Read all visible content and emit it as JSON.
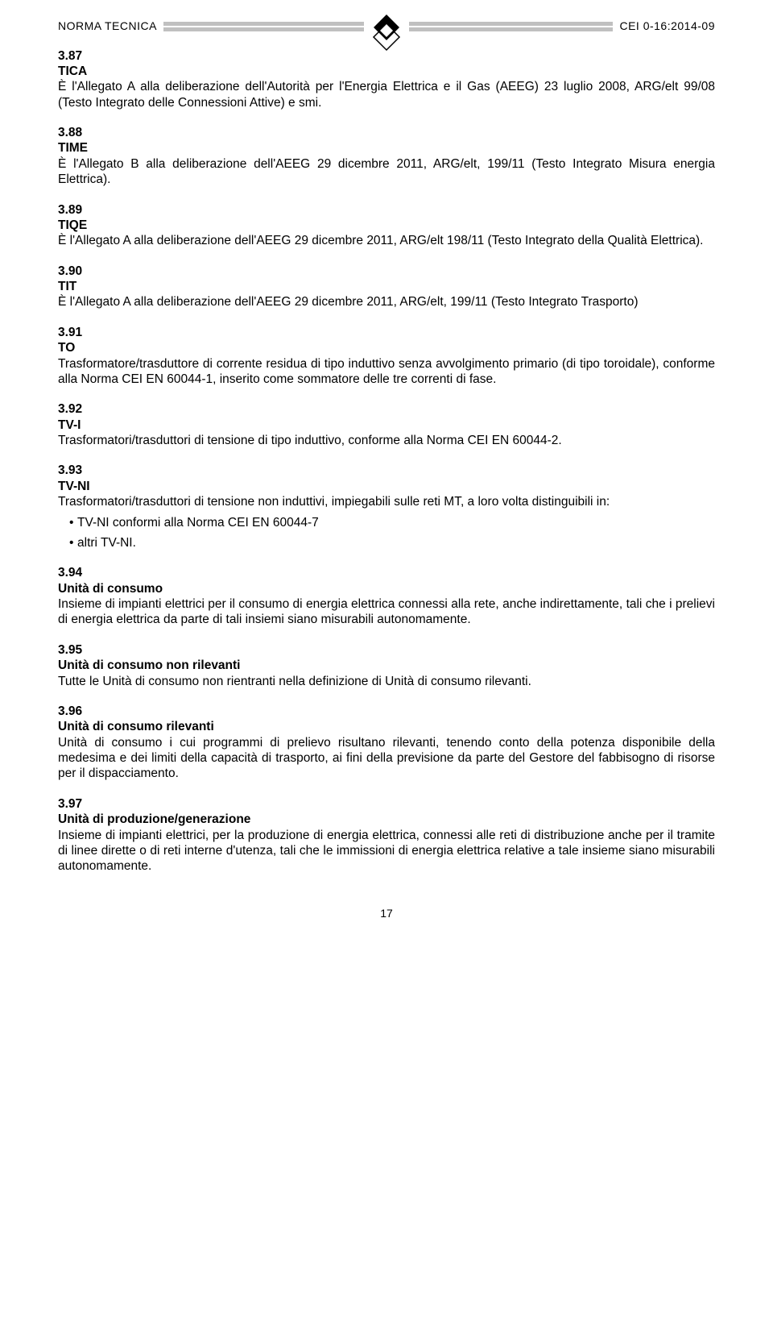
{
  "header": {
    "left": "NORMA TECNICA",
    "right": "CEI 0-16:2014-09"
  },
  "sections": [
    {
      "num": "3.87",
      "title": "TICA",
      "body": "È l'Allegato A alla deliberazione dell'Autorità per l'Energia Elettrica e il Gas (AEEG) 23 luglio 2008, ARG/elt 99/08 (Testo Integrato delle Connessioni Attive) e smi."
    },
    {
      "num": "3.88",
      "title": "TIME",
      "body": "È l'Allegato B alla deliberazione dell'AEEG 29 dicembre 2011, ARG/elt, 199/11 (Testo Integrato Misura energia Elettrica)."
    },
    {
      "num": "3.89",
      "title": "TIQE",
      "body": "È l'Allegato A alla deliberazione dell'AEEG 29 dicembre 2011, ARG/elt 198/11 (Testo Integrato della Qualità Elettrica)."
    },
    {
      "num": "3.90",
      "title": "TIT",
      "body": "È l'Allegato A alla deliberazione dell'AEEG 29 dicembre 2011, ARG/elt, 199/11 (Testo Integrato Trasporto)"
    },
    {
      "num": "3.91",
      "title": "TO",
      "body": "Trasformatore/trasduttore di corrente residua di tipo induttivo senza avvolgimento primario (di tipo toroidale), conforme alla Norma CEI EN 60044-1, inserito come sommatore delle tre correnti di fase."
    },
    {
      "num": "3.92",
      "title": "TV-I",
      "body": "Trasformatori/trasduttori di tensione di tipo induttivo, conforme alla Norma CEI EN 60044-2."
    },
    {
      "num": "3.93",
      "title": "TV-NI",
      "body": "Trasformatori/trasduttori di tensione non induttivi, impiegabili sulle reti MT, a loro volta distinguibili in:",
      "list": [
        "TV-NI conformi alla Norma CEI EN 60044-7",
        "altri TV-NI."
      ]
    },
    {
      "num": "3.94",
      "title": "Unità di consumo",
      "body": "Insieme di impianti elettrici per il consumo di energia elettrica connessi alla rete, anche indirettamente, tali che i prelievi di energia elettrica da parte di tali insiemi siano misurabili autonomamente."
    },
    {
      "num": "3.95",
      "title": "Unità di consumo non rilevanti",
      "body": "Tutte le Unità di consumo non rientranti nella definizione di Unità di consumo rilevanti."
    },
    {
      "num": "3.96",
      "title": "Unità di consumo rilevanti",
      "body": "Unità di consumo i cui programmi di prelievo risultano rilevanti, tenendo conto della potenza disponibile della medesima e dei limiti della capacità di trasporto, ai fini della previsione da parte del Gestore del fabbisogno di risorse per il dispacciamento."
    },
    {
      "num": "3.97",
      "title": "Unità di produzione/generazione",
      "body": "Insieme di impianti elettrici, per la produzione di energia elettrica, connessi alle reti di distribuzione anche per il tramite di linee dirette o di reti interne d'utenza, tali che le immissioni di energia elettrica relative a tale insieme siano misurabili autonomamente."
    }
  ],
  "pageNumber": "17",
  "colors": {
    "text": "#000000",
    "bar": "#c0c0c0",
    "background": "#ffffff"
  }
}
